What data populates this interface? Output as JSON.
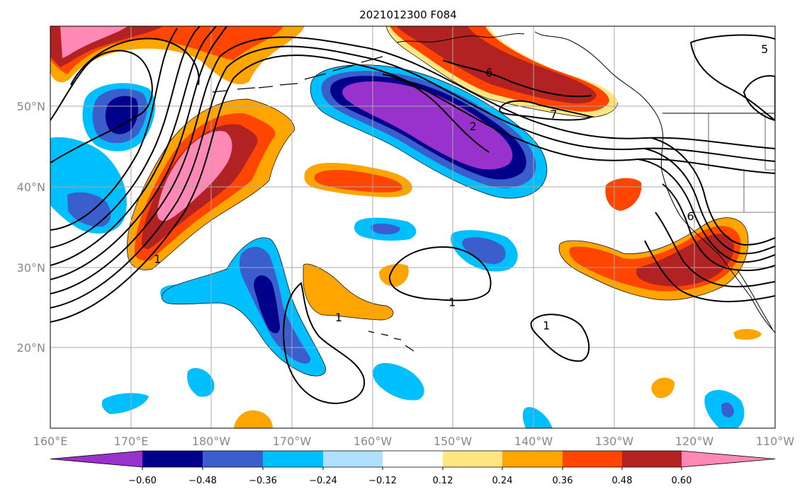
{
  "title": "2021012300 F084",
  "map": {
    "lon_range": [
      160,
      250
    ],
    "lat_range": [
      10,
      60
    ],
    "gridlines": true,
    "x_ticks": [
      {
        "value": 160,
        "label": "160°E"
      },
      {
        "value": 170,
        "label": "170°E"
      },
      {
        "value": 180,
        "label": "180°W"
      },
      {
        "value": 190,
        "label": "170°W"
      },
      {
        "value": 200,
        "label": "160°W"
      },
      {
        "value": 210,
        "label": "150°W"
      },
      {
        "value": 220,
        "label": "140°W"
      },
      {
        "value": 230,
        "label": "130°W"
      },
      {
        "value": 240,
        "label": "120°W"
      },
      {
        "value": 250,
        "label": "110°W"
      }
    ],
    "y_ticks": [
      {
        "value": 20,
        "label": "20°N"
      },
      {
        "value": 30,
        "label": "30°N"
      },
      {
        "value": 40,
        "label": "40°N"
      },
      {
        "value": 50,
        "label": "50°N"
      }
    ]
  },
  "colorbar": {
    "levels": [
      "−0.60",
      "−0.48",
      "−0.36",
      "−0.24",
      "−0.12",
      "0.12",
      "0.24",
      "0.36",
      "0.48",
      "0.60"
    ],
    "colors": [
      "#9932cc",
      "#00008b",
      "#3a5fcd",
      "#00bfff",
      "#b0e0ff",
      "#ffffff",
      "#ffe680",
      "#ffa500",
      "#ff4500",
      "#b22222",
      "#ff88b4"
    ]
  },
  "contour_labels": [
    {
      "text": "5",
      "lon": 248.7,
      "lat": 57.2
    },
    {
      "text": "6",
      "lon": 214.5,
      "lat": 54.3
    },
    {
      "text": "7",
      "lon": 222.5,
      "lat": 49.1
    },
    {
      "text": "2",
      "lon": 212.5,
      "lat": 47.6
    },
    {
      "text": "6",
      "lon": 239.5,
      "lat": 36.4
    },
    {
      "text": "1",
      "lon": 173.3,
      "lat": 31.1
    },
    {
      "text": "1",
      "lon": 195.8,
      "lat": 23.8
    },
    {
      "text": "1",
      "lon": 209.9,
      "lat": 25.7
    },
    {
      "text": "1",
      "lon": 221.6,
      "lat": 22.8
    }
  ]
}
